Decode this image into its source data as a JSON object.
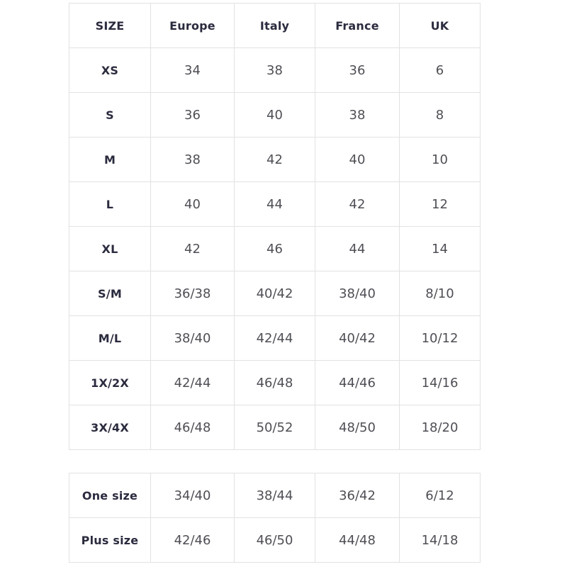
{
  "tables": {
    "main": {
      "headers": [
        "SIZE",
        "Europe",
        "Italy",
        "France",
        "UK"
      ],
      "rows": [
        [
          "XS",
          "34",
          "38",
          "36",
          "6"
        ],
        [
          "S",
          "36",
          "40",
          "38",
          "8"
        ],
        [
          "M",
          "38",
          "42",
          "40",
          "10"
        ],
        [
          "L",
          "40",
          "44",
          "42",
          "12"
        ],
        [
          "XL",
          "42",
          "46",
          "44",
          "14"
        ],
        [
          "S/M",
          "36/38",
          "40/42",
          "38/40",
          "8/10"
        ],
        [
          "M/L",
          "38/40",
          "42/44",
          "40/42",
          "10/12"
        ],
        [
          "1X/2X",
          "42/44",
          "46/48",
          "44/46",
          "14/16"
        ],
        [
          "3X/4X",
          "46/48",
          "50/52",
          "48/50",
          "18/20"
        ]
      ]
    },
    "special": {
      "rows": [
        [
          "One size",
          "34/40",
          "38/44",
          "36/42",
          "6/12"
        ],
        [
          "Plus size",
          "42/46",
          "46/50",
          "44/48",
          "14/18"
        ]
      ]
    }
  },
  "colors": {
    "background": "#ffffff",
    "border": "#e2e2e4",
    "header_text": "#2b2b3f",
    "cell_text": "#4e4f55"
  }
}
